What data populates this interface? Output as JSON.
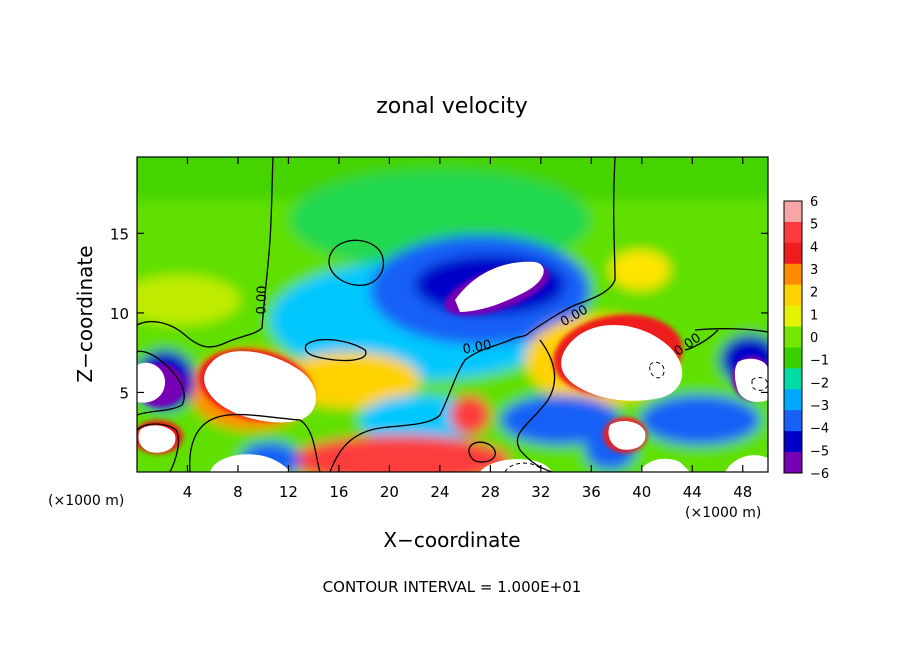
{
  "chart_data": {
    "type": "heatmap",
    "title": "zonal velocity",
    "xlabel": "X−coordinate",
    "ylabel": "Z−coordinate",
    "x_unit_left": "(×1000 m)",
    "x_unit_right": "(×1000 m)",
    "xlim": [
      0,
      50
    ],
    "ylim": [
      0,
      19.8
    ],
    "xticks": [
      4,
      8,
      12,
      16,
      20,
      24,
      28,
      32,
      36,
      40,
      44,
      48
    ],
    "yticks": [
      5,
      10,
      15
    ],
    "contour_labels": [
      {
        "text": "0.00",
        "x": 10.2,
        "y": 10.8,
        "rotate": -88
      },
      {
        "text": "0.00",
        "x": 27.0,
        "y": 7.6,
        "rotate": -10
      },
      {
        "text": "0.00",
        "x": 34.8,
        "y": 9.6,
        "rotate": -30
      },
      {
        "text": "0.00",
        "x": 43.8,
        "y": 7.8,
        "rotate": -35
      }
    ],
    "colorbar": {
      "ticks": [
        6,
        5,
        4,
        3,
        2,
        1,
        0,
        -1,
        -2,
        -3,
        -4,
        -5,
        -6
      ],
      "colors": [
        "#f6a6a6",
        "#fc3c3c",
        "#ee1c1c",
        "#fe8c00",
        "#ffd200",
        "#e2f200",
        "#74e600",
        "#38d200",
        "#02dca4",
        "#00a8ff",
        "#1860f6",
        "#0000c8",
        "#7800b4"
      ]
    },
    "footer": "CONTOUR INTERVAL = 1.000E+01"
  }
}
